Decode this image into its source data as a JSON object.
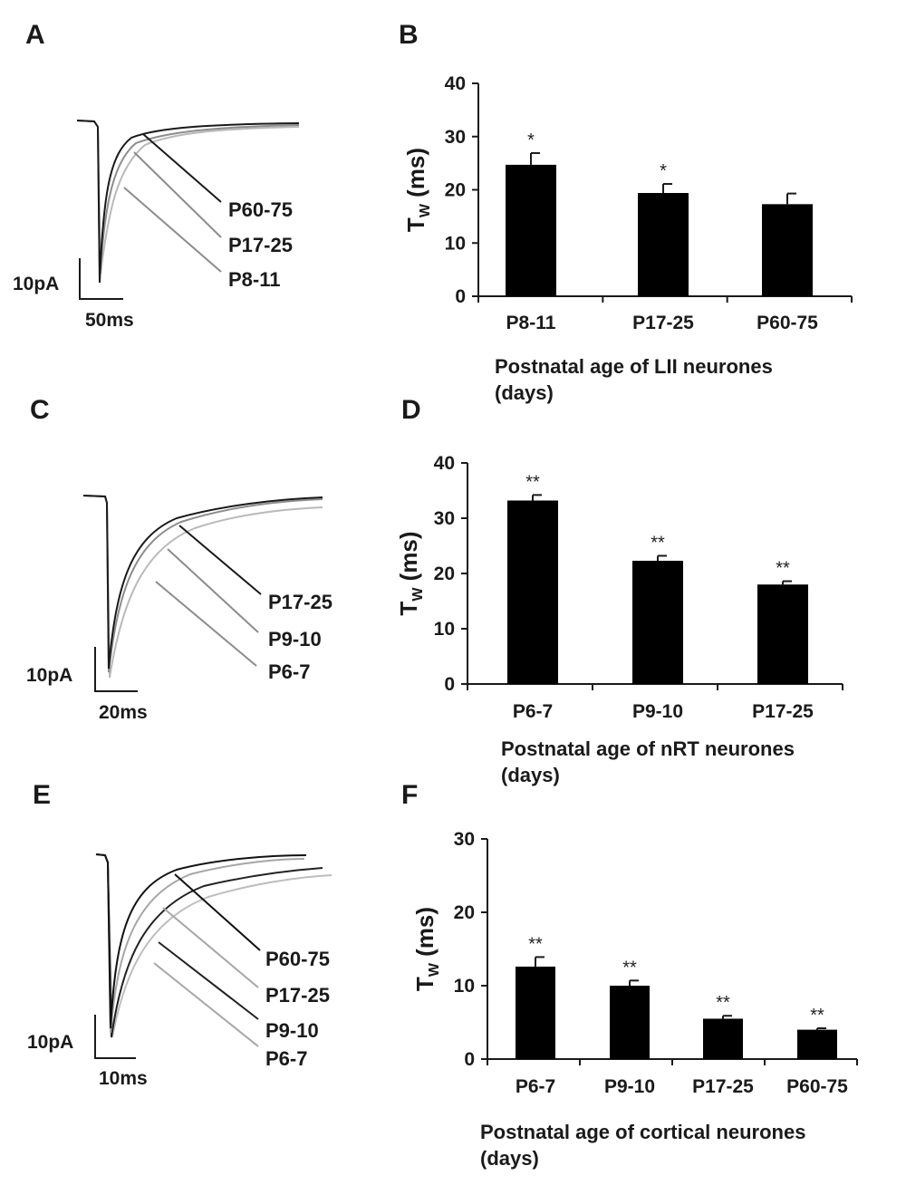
{
  "panels": [
    {
      "label": "A"
    },
    {
      "label": "B"
    },
    {
      "label": "C"
    },
    {
      "label": "D"
    },
    {
      "label": "E"
    },
    {
      "label": "F"
    }
  ],
  "traces": [
    {
      "panel": "A",
      "labels": [
        "P60-75",
        "P17-25",
        "P8-11"
      ],
      "scale_y": "10pA",
      "scale_x": "50ms",
      "colors": [
        "#1a1a1a",
        "#8c8c8c",
        "#b9b9b9"
      ]
    },
    {
      "panel": "C",
      "labels": [
        "P17-25",
        "P9-10",
        "P6-7"
      ],
      "scale_y": "10pA",
      "scale_x": "20ms",
      "colors": [
        "#1a1a1a",
        "#8c8c8c",
        "#b9b9b9"
      ]
    },
    {
      "panel": "E",
      "labels": [
        "P60-75",
        "P17-25",
        "P9-10",
        "P6-7"
      ],
      "scale_y": "10pA",
      "scale_x": "10ms",
      "colors": [
        "#111111",
        "#a6a6a6",
        "#222222",
        "#bdbdbd"
      ]
    }
  ],
  "chart_data": [
    {
      "panel": "B",
      "type": "bar",
      "categories": [
        "P8-11",
        "P17-25",
        "P60-75"
      ],
      "values": [
        24.7,
        19.4,
        17.3
      ],
      "errors": [
        2.2,
        1.7,
        2.0
      ],
      "significance": [
        "*",
        "*",
        ""
      ],
      "ylabel": "T",
      "ylabel_sub": "W",
      "ylabel_unit": "(ms)",
      "ylim": [
        0,
        40
      ],
      "yticks": [
        0,
        10,
        20,
        30,
        40
      ],
      "xlabel_line1": "Postnatal age of LII neurones",
      "xlabel_line2": "(days)",
      "bar_color": "#000000"
    },
    {
      "panel": "D",
      "type": "bar",
      "categories": [
        "P6-7",
        "P9-10",
        "P17-25"
      ],
      "values": [
        33.2,
        22.3,
        18.0
      ],
      "errors": [
        1.0,
        0.9,
        0.6
      ],
      "significance": [
        "**",
        "**",
        "**"
      ],
      "ylabel": "T",
      "ylabel_sub": "W",
      "ylabel_unit": "(ms)",
      "ylim": [
        0,
        40
      ],
      "yticks": [
        0,
        10,
        20,
        30,
        40
      ],
      "xlabel_line1": "Postnatal age of nRT neurones",
      "xlabel_line2": "(days)",
      "bar_color": "#000000"
    },
    {
      "panel": "F",
      "type": "bar",
      "categories": [
        "P6-7",
        "P9-10",
        "P17-25",
        "P60-75"
      ],
      "values": [
        12.6,
        10.0,
        5.5,
        4.0
      ],
      "errors": [
        1.3,
        0.7,
        0.4,
        0.2
      ],
      "significance": [
        "**",
        "**",
        "**",
        "**"
      ],
      "ylabel": "T",
      "ylabel_sub": "W",
      "ylabel_unit": "(ms)",
      "ylim": [
        0,
        30
      ],
      "yticks": [
        0,
        10,
        20,
        30
      ],
      "xlabel_line1": "Postnatal age of cortical neurones",
      "xlabel_line2": "(days)",
      "bar_color": "#000000"
    }
  ]
}
